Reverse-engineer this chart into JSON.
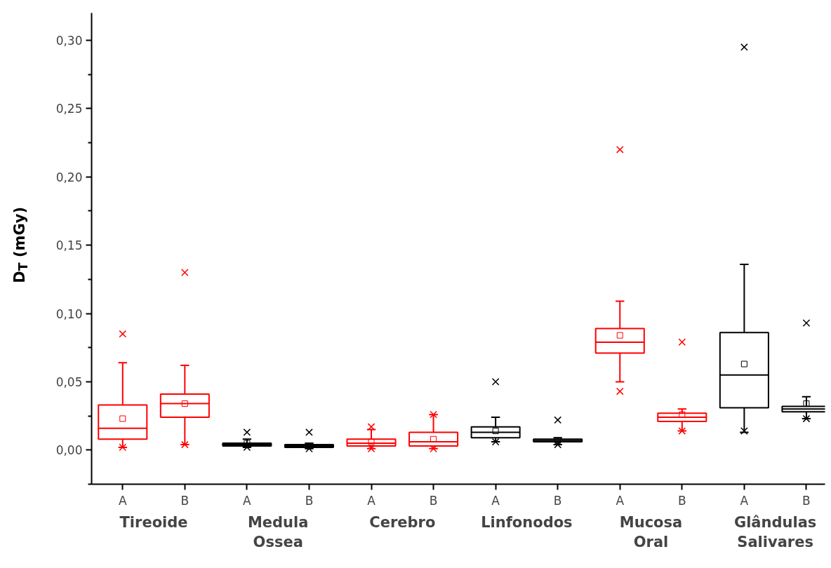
{
  "chart_data": {
    "type": "box",
    "ylabel": "D$_{T}$ (mGy)",
    "categories": [
      "A",
      "B",
      "A",
      "B",
      "A",
      "B",
      "A",
      "B",
      "A",
      "B",
      "A",
      "B"
    ],
    "annotations": [
      "Tireoide",
      "Medula Ossea",
      "Cerebro",
      "Linfonodos",
      "Mucosa Oral",
      "Glândulas Salivares"
    ],
    "ylim": [
      -0.025,
      0.32
    ],
    "grid": false,
    "yticks": [
      {
        "value": -0.025,
        "label": null
      },
      {
        "value": 0,
        "label": "0,00"
      },
      {
        "value": 0.025,
        "label": null
      },
      {
        "value": 0.05,
        "label": "0,05"
      },
      {
        "value": 0.075,
        "label": null
      },
      {
        "value": 0.1,
        "label": "0,10"
      },
      {
        "value": 0.125,
        "label": null
      },
      {
        "value": 0.15,
        "label": "0,15"
      },
      {
        "value": 0.175,
        "label": null
      },
      {
        "value": 0.2,
        "label": "0,20"
      },
      {
        "value": 0.225,
        "label": null
      },
      {
        "value": 0.25,
        "label": "0,25"
      },
      {
        "value": 0.275,
        "label": null
      },
      {
        "value": 0.3,
        "label": "0,30"
      }
    ],
    "colors": [
      "#ff0000",
      "#ff0000",
      "#000000",
      "#000000",
      "#ff0000",
      "#ff0000",
      "#000000",
      "#000000",
      "#ff0000",
      "#ff0000",
      "#000000",
      "#000000"
    ],
    "boxes": [
      {
        "low": 0.002,
        "q1": 0.008,
        "median": 0.016,
        "q3": 0.033,
        "high": 0.064,
        "mean": 0.023,
        "outliers": [
          0.085,
          0.002
        ]
      },
      {
        "low": 0.004,
        "q1": 0.024,
        "median": 0.034,
        "q3": 0.041,
        "high": 0.062,
        "mean": 0.034,
        "outliers": [
          0.13,
          0.004
        ]
      },
      {
        "low": 0.002,
        "q1": 0.003,
        "median": 0.004,
        "q3": 0.005,
        "high": 0.008,
        "mean": 0.005,
        "outliers": [
          0.013,
          0.002
        ]
      },
      {
        "low": 0.001,
        "q1": 0.002,
        "median": 0.003,
        "q3": 0.004,
        "high": 0.005,
        "mean": 0.003,
        "outliers": [
          0.013,
          0.001
        ]
      },
      {
        "low": 0.001,
        "q1": 0.003,
        "median": 0.005,
        "q3": 0.008,
        "high": 0.015,
        "mean": 0.006,
        "outliers": [
          0.017,
          0.001
        ]
      },
      {
        "low": 0.001,
        "q1": 0.003,
        "median": 0.006,
        "q3": 0.013,
        "high": 0.026,
        "mean": 0.008,
        "outliers": [
          0.026,
          0.001
        ]
      },
      {
        "low": 0.006,
        "q1": 0.009,
        "median": 0.013,
        "q3": 0.017,
        "high": 0.024,
        "mean": 0.014,
        "outliers": [
          0.05,
          0.006
        ]
      },
      {
        "low": 0.004,
        "q1": 0.006,
        "median": 0.007,
        "q3": 0.008,
        "high": 0.009,
        "mean": 0.007,
        "outliers": [
          0.022,
          0.004
        ]
      },
      {
        "low": 0.05,
        "q1": 0.071,
        "median": 0.079,
        "q3": 0.089,
        "high": 0.109,
        "mean": 0.084,
        "outliers": [
          0.22,
          0.043
        ]
      },
      {
        "low": 0.014,
        "q1": 0.021,
        "median": 0.024,
        "q3": 0.027,
        "high": 0.03,
        "mean": 0.026,
        "outliers": [
          0.079,
          0.014
        ]
      },
      {
        "low": 0.013,
        "q1": 0.031,
        "median": 0.055,
        "q3": 0.086,
        "high": 0.136,
        "mean": 0.063,
        "outliers": [
          0.295,
          0.014
        ]
      },
      {
        "low": 0.023,
        "q1": 0.028,
        "median": 0.03,
        "q3": 0.032,
        "high": 0.039,
        "mean": 0.034,
        "outliers": [
          0.093,
          0.023
        ]
      }
    ]
  }
}
